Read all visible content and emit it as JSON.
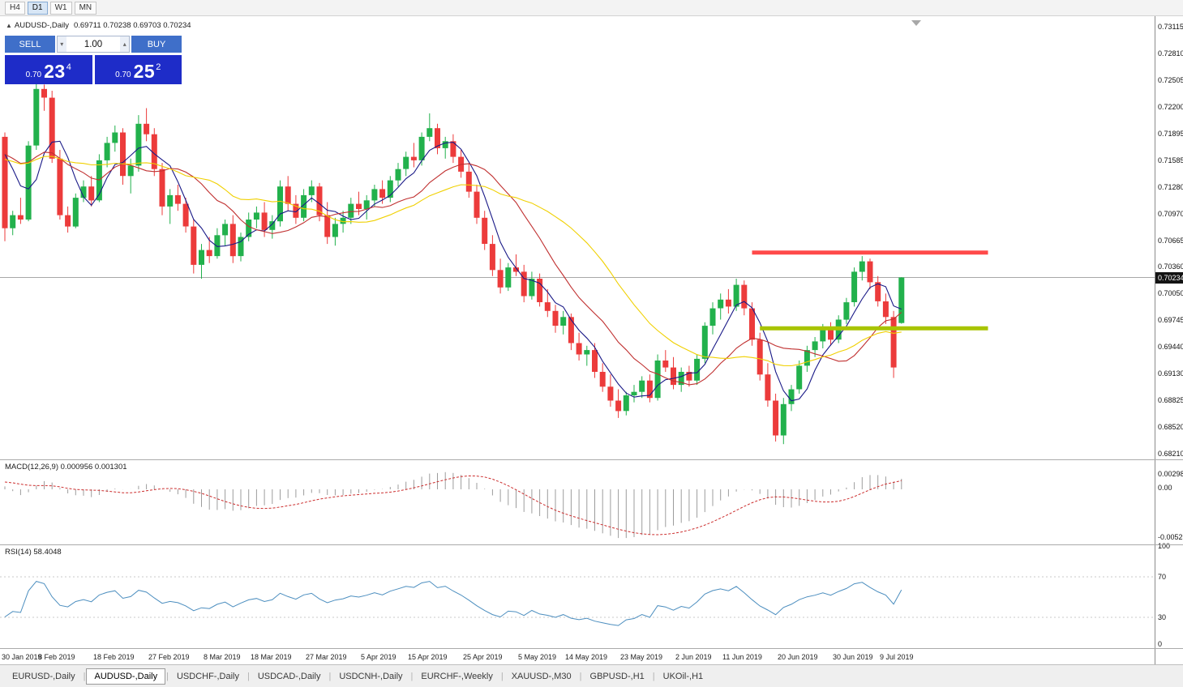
{
  "toolbar": {
    "timeframes": [
      "H4",
      "D1",
      "W1",
      "MN"
    ],
    "active": "D1"
  },
  "chart_header": {
    "collapse_icon": "▲",
    "symbol": "AUDUSD-,Daily",
    "ohlc": "0.69711 0.70238 0.69703 0.70234"
  },
  "trade_panel": {
    "sell_label": "SELL",
    "buy_label": "BUY",
    "volume": "1.00",
    "volume_down_icon": "▾",
    "volume_up_icon": "▴",
    "sell_price": {
      "prefix": "0.70",
      "big": "23",
      "sup": "4"
    },
    "buy_price": {
      "prefix": "0.70",
      "big": "25",
      "sup": "2"
    }
  },
  "macd_panel": {
    "title": "MACD(12,26,9) 0.000956 0.001301",
    "axis": [
      "0.00298",
      "0.00",
      "-0.00525"
    ]
  },
  "rsi_panel": {
    "title": "RSI(14) 58.4048",
    "axis": [
      "100",
      "70",
      "30",
      "0"
    ]
  },
  "tabs": {
    "active_index": 1,
    "separator": "|",
    "items": [
      "EURUSD-,Daily",
      "AUDUSD-,Daily",
      "USDCHF-,Daily",
      "USDCAD-,Daily",
      "USDCNH-,Daily",
      "EURCHF-,Weekly",
      "XAUUSD-,M30",
      "GBPUSD-,H1",
      "UKOil-,H1"
    ]
  },
  "chart_data": {
    "type": "candlestick",
    "symbol": "AUDUSD",
    "timeframe": "Daily",
    "bid": 0.70234,
    "bid_label": "0.70234",
    "y_axis": {
      "max": 0.73115,
      "min": 0.6821,
      "labels": [
        "0.73115",
        "0.72810",
        "0.72505",
        "0.72200",
        "0.71895",
        "0.71585",
        "0.71280",
        "0.70970",
        "0.70665",
        "0.70360",
        "0.70050",
        "0.69745",
        "0.69440",
        "0.69130",
        "0.68825",
        "0.68520",
        "0.68210"
      ]
    },
    "candle_colors": {
      "up": "#22B14C",
      "down": "#EC3B3B"
    },
    "overlays": {
      "resistance_line": {
        "price": 0.7052,
        "color": "#FF4A4A",
        "from_index": 95,
        "to_index": 125,
        "width": 5
      },
      "support_line": {
        "price": 0.6965,
        "color": "#A8C400",
        "from_index": 96,
        "to_index": 125,
        "width": 5
      }
    },
    "moving_averages": [
      {
        "period": 5,
        "color": "#191987"
      },
      {
        "period": 13,
        "color": "#C03030"
      },
      {
        "period": 24,
        "color": "#F0D000"
      }
    ],
    "indicators": {
      "macd": {
        "fast": 12,
        "slow": 26,
        "signal": 9,
        "bar_color": "#9C9C9C",
        "signal_color": "#CC2E2E"
      },
      "rsi": {
        "period": 14,
        "value": 58.4048,
        "color": "#4C8EBF",
        "levels": [
          70,
          30
        ]
      }
    },
    "date_labels": [
      {
        "label": "30 Jan 2019",
        "index": 0
      },
      {
        "label": "8 Feb 2019",
        "index": 7
      },
      {
        "label": "18 Feb 2019",
        "index": 14
      },
      {
        "label": "27 Feb 2019",
        "index": 21
      },
      {
        "label": "8 Mar 2019",
        "index": 28
      },
      {
        "label": "18 Mar 2019",
        "index": 34
      },
      {
        "label": "27 Mar 2019",
        "index": 41
      },
      {
        "label": "5 Apr 2019",
        "index": 48
      },
      {
        "label": "15 Apr 2019",
        "index": 54
      },
      {
        "label": "25 Apr 2019",
        "index": 61
      },
      {
        "label": "5 May 2019",
        "index": 68
      },
      {
        "label": "14 May 2019",
        "index": 74
      },
      {
        "label": "23 May 2019",
        "index": 81
      },
      {
        "label": "2 Jun 2019",
        "index": 88
      },
      {
        "label": "11 Jun 2019",
        "index": 94
      },
      {
        "label": "20 Jun 2019",
        "index": 101
      },
      {
        "label": "30 Jun 2019",
        "index": 108
      },
      {
        "label": "9 Jul 2019",
        "index": 114
      }
    ],
    "warmup_closes": [
      0.713,
      0.714,
      0.715,
      0.7155,
      0.716,
      0.715,
      0.714,
      0.7148,
      0.7155,
      0.7162,
      0.7158,
      0.715,
      0.7145,
      0.7152,
      0.7158,
      0.7165,
      0.716,
      0.7155,
      0.7162,
      0.717,
      0.7178,
      0.7172,
      0.718,
      0.7188,
      0.7192,
      0.7186
    ],
    "ohlc": [
      [
        0.7185,
        0.719,
        0.7065,
        0.708
      ],
      [
        0.708,
        0.71,
        0.7072,
        0.7095
      ],
      [
        0.7095,
        0.7115,
        0.7085,
        0.709
      ],
      [
        0.709,
        0.718,
        0.7088,
        0.7175
      ],
      [
        0.7175,
        0.7248,
        0.717,
        0.724
      ],
      [
        0.724,
        0.7245,
        0.7215,
        0.723
      ],
      [
        0.723,
        0.7238,
        0.7155,
        0.716
      ],
      [
        0.716,
        0.717,
        0.709,
        0.7095
      ],
      [
        0.7095,
        0.7105,
        0.7075,
        0.7082
      ],
      [
        0.7082,
        0.712,
        0.708,
        0.7115
      ],
      [
        0.7115,
        0.7135,
        0.711,
        0.7128
      ],
      [
        0.7128,
        0.714,
        0.7105,
        0.7112
      ],
      [
        0.7112,
        0.7165,
        0.711,
        0.7158
      ],
      [
        0.7158,
        0.7185,
        0.715,
        0.7178
      ],
      [
        0.7178,
        0.7198,
        0.7168,
        0.719
      ],
      [
        0.719,
        0.7195,
        0.713,
        0.714
      ],
      [
        0.714,
        0.716,
        0.712,
        0.7152
      ],
      [
        0.7152,
        0.721,
        0.7145,
        0.72
      ],
      [
        0.72,
        0.7218,
        0.718,
        0.7188
      ],
      [
        0.7188,
        0.7195,
        0.714,
        0.7148
      ],
      [
        0.7148,
        0.7155,
        0.7095,
        0.7105
      ],
      [
        0.7105,
        0.7125,
        0.7085,
        0.7118
      ],
      [
        0.7118,
        0.713,
        0.71,
        0.7108
      ],
      [
        0.7108,
        0.7115,
        0.7075,
        0.7082
      ],
      [
        0.7082,
        0.709,
        0.7028,
        0.7038
      ],
      [
        0.7038,
        0.7062,
        0.7022,
        0.7055
      ],
      [
        0.7055,
        0.707,
        0.704,
        0.7048
      ],
      [
        0.7048,
        0.708,
        0.7045,
        0.7072
      ],
      [
        0.7072,
        0.709,
        0.706,
        0.7085
      ],
      [
        0.7085,
        0.7095,
        0.704,
        0.7048
      ],
      [
        0.7048,
        0.7075,
        0.7042,
        0.707
      ],
      [
        0.707,
        0.7098,
        0.7065,
        0.709
      ],
      [
        0.709,
        0.7105,
        0.708,
        0.7098
      ],
      [
        0.7098,
        0.711,
        0.707,
        0.7078
      ],
      [
        0.7078,
        0.7095,
        0.7068,
        0.7088
      ],
      [
        0.7088,
        0.7135,
        0.7082,
        0.7128
      ],
      [
        0.7128,
        0.714,
        0.71,
        0.7108
      ],
      [
        0.7108,
        0.7118,
        0.7085,
        0.7092
      ],
      [
        0.7092,
        0.7125,
        0.7088,
        0.7118
      ],
      [
        0.7118,
        0.7135,
        0.711,
        0.7128
      ],
      [
        0.7128,
        0.7132,
        0.7088,
        0.7095
      ],
      [
        0.7095,
        0.711,
        0.7062,
        0.707
      ],
      [
        0.707,
        0.7092,
        0.706,
        0.7085
      ],
      [
        0.7085,
        0.71,
        0.7075,
        0.7092
      ],
      [
        0.7092,
        0.7115,
        0.7085,
        0.7108
      ],
      [
        0.7108,
        0.7122,
        0.7095,
        0.7102
      ],
      [
        0.7102,
        0.7118,
        0.709,
        0.7112
      ],
      [
        0.7112,
        0.713,
        0.7105,
        0.7125
      ],
      [
        0.7125,
        0.7135,
        0.7108,
        0.7115
      ],
      [
        0.7115,
        0.714,
        0.711,
        0.7135
      ],
      [
        0.7135,
        0.7155,
        0.7128,
        0.7148
      ],
      [
        0.7148,
        0.7168,
        0.714,
        0.7162
      ],
      [
        0.7162,
        0.7178,
        0.715,
        0.7158
      ],
      [
        0.7158,
        0.719,
        0.7152,
        0.7185
      ],
      [
        0.7185,
        0.7212,
        0.718,
        0.7195
      ],
      [
        0.7195,
        0.72,
        0.7165,
        0.7172
      ],
      [
        0.7172,
        0.7185,
        0.716,
        0.718
      ],
      [
        0.718,
        0.7188,
        0.7155,
        0.7162
      ],
      [
        0.7162,
        0.717,
        0.7138,
        0.7145
      ],
      [
        0.7145,
        0.7155,
        0.7115,
        0.7122
      ],
      [
        0.7122,
        0.713,
        0.7085,
        0.7092
      ],
      [
        0.7092,
        0.71,
        0.7055,
        0.7062
      ],
      [
        0.7062,
        0.7072,
        0.7025,
        0.7032
      ],
      [
        0.7032,
        0.7045,
        0.7005,
        0.7012
      ],
      [
        0.7012,
        0.704,
        0.7008,
        0.7035
      ],
      [
        0.7035,
        0.705,
        0.7025,
        0.703
      ],
      [
        0.703,
        0.7038,
        0.6995,
        0.7002
      ],
      [
        0.7002,
        0.703,
        0.6998,
        0.7022
      ],
      [
        0.7022,
        0.7028,
        0.699,
        0.6995
      ],
      [
        0.6995,
        0.701,
        0.6978,
        0.6985
      ],
      [
        0.6985,
        0.6992,
        0.696,
        0.6968
      ],
      [
        0.6968,
        0.6985,
        0.6958,
        0.6978
      ],
      [
        0.6978,
        0.6982,
        0.694,
        0.6948
      ],
      [
        0.6948,
        0.696,
        0.6928,
        0.6935
      ],
      [
        0.6935,
        0.6945,
        0.6922,
        0.694
      ],
      [
        0.694,
        0.6948,
        0.6908,
        0.6915
      ],
      [
        0.6915,
        0.6925,
        0.6892,
        0.6898
      ],
      [
        0.6898,
        0.6912,
        0.6875,
        0.6882
      ],
      [
        0.6882,
        0.6895,
        0.6862,
        0.687
      ],
      [
        0.687,
        0.6892,
        0.6865,
        0.6888
      ],
      [
        0.6888,
        0.69,
        0.688,
        0.6892
      ],
      [
        0.6892,
        0.691,
        0.6885,
        0.6905
      ],
      [
        0.6905,
        0.6912,
        0.688,
        0.6885
      ],
      [
        0.6885,
        0.6935,
        0.6882,
        0.6928
      ],
      [
        0.6928,
        0.694,
        0.6915,
        0.692
      ],
      [
        0.692,
        0.6932,
        0.6895,
        0.69
      ],
      [
        0.69,
        0.692,
        0.6892,
        0.6915
      ],
      [
        0.6915,
        0.6922,
        0.6898,
        0.6905
      ],
      [
        0.6905,
        0.6935,
        0.69,
        0.693
      ],
      [
        0.693,
        0.6972,
        0.6925,
        0.6968
      ],
      [
        0.6968,
        0.6995,
        0.6958,
        0.6988
      ],
      [
        0.6988,
        0.7005,
        0.6975,
        0.6998
      ],
      [
        0.6998,
        0.701,
        0.6982,
        0.699
      ],
      [
        0.699,
        0.7022,
        0.6985,
        0.7015
      ],
      [
        0.7015,
        0.702,
        0.698,
        0.6988
      ],
      [
        0.6988,
        0.6995,
        0.6945,
        0.6952
      ],
      [
        0.6952,
        0.696,
        0.6905,
        0.6912
      ],
      [
        0.6912,
        0.6925,
        0.6875,
        0.6882
      ],
      [
        0.6882,
        0.689,
        0.6835,
        0.6842
      ],
      [
        0.6842,
        0.6885,
        0.6832,
        0.6878
      ],
      [
        0.6878,
        0.69,
        0.687,
        0.6895
      ],
      [
        0.6895,
        0.6928,
        0.689,
        0.6922
      ],
      [
        0.6922,
        0.6945,
        0.6915,
        0.694
      ],
      [
        0.694,
        0.6955,
        0.6932,
        0.695
      ],
      [
        0.695,
        0.697,
        0.6942,
        0.6965
      ],
      [
        0.6965,
        0.6972,
        0.6945,
        0.6952
      ],
      [
        0.6952,
        0.698,
        0.6948,
        0.6975
      ],
      [
        0.6975,
        0.7,
        0.697,
        0.6995
      ],
      [
        0.6995,
        0.7035,
        0.699,
        0.703
      ],
      [
        0.703,
        0.7048,
        0.702,
        0.7042
      ],
      [
        0.7042,
        0.7045,
        0.701,
        0.7018
      ],
      [
        0.7018,
        0.7025,
        0.699,
        0.6996
      ],
      [
        0.6996,
        0.7005,
        0.697,
        0.6978
      ],
      [
        0.6978,
        0.6985,
        0.6908,
        0.692
      ],
      [
        0.69711,
        0.70238,
        0.69703,
        0.70234
      ]
    ]
  }
}
